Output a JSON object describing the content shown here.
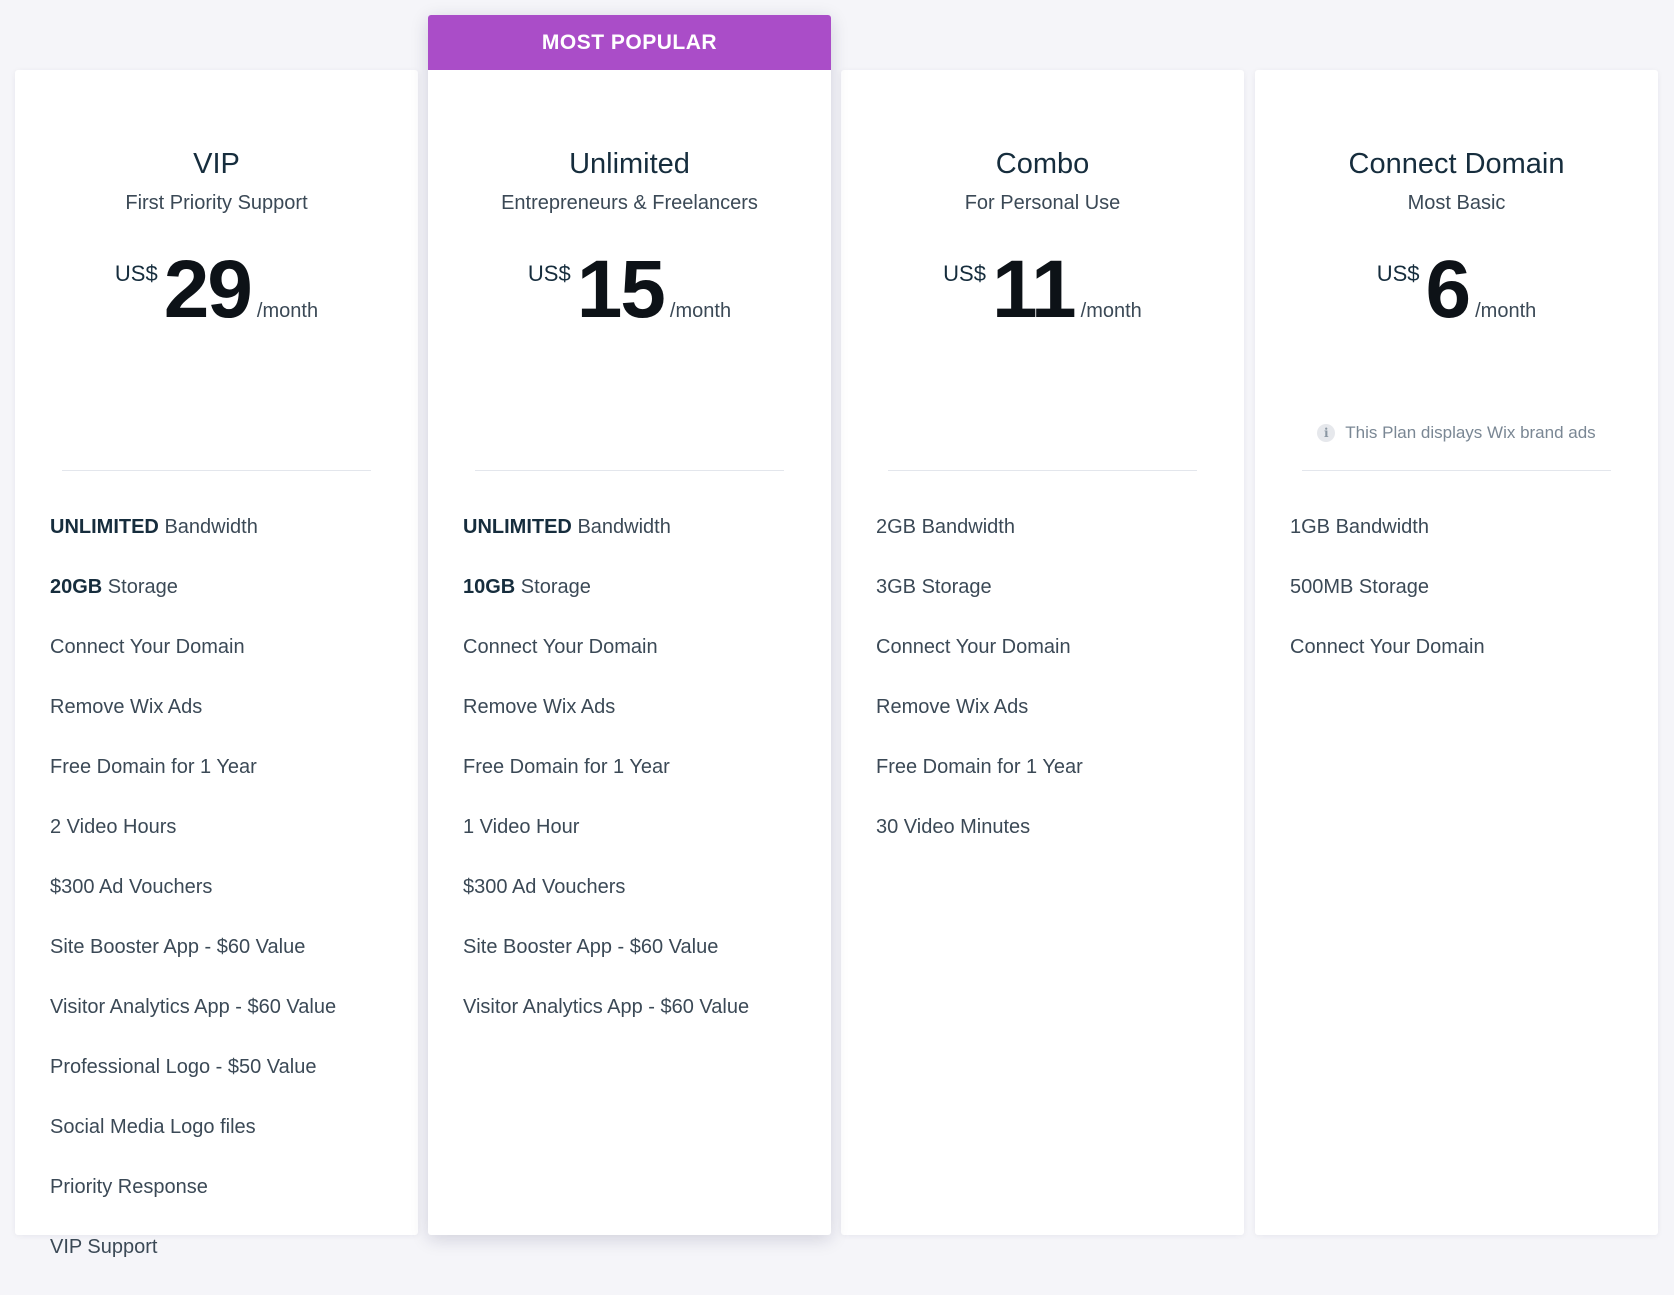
{
  "popular_label": "MOST POPULAR",
  "plans": [
    {
      "name": "VIP",
      "tagline": "First Priority Support",
      "currency": "US$",
      "amount": "29",
      "period": "/month",
      "features": [
        {
          "bold": "UNLIMITED",
          "text": " Bandwidth"
        },
        {
          "bold": "20GB",
          "text": " Storage"
        },
        {
          "bold": "",
          "text": "Connect Your Domain"
        },
        {
          "bold": "",
          "text": "Remove Wix Ads"
        },
        {
          "bold": "",
          "text": "Free Domain for 1 Year"
        },
        {
          "bold": "",
          "text": "2 Video Hours"
        },
        {
          "bold": "",
          "text": "$300 Ad Vouchers"
        },
        {
          "bold": "",
          "text": "Site Booster App - $60 Value"
        },
        {
          "bold": "",
          "text": "Visitor Analytics App - $60 Value"
        },
        {
          "bold": "",
          "text": "Professional Logo - $50 Value"
        },
        {
          "bold": "",
          "text": "Social Media Logo files"
        },
        {
          "bold": "",
          "text": "Priority Response"
        },
        {
          "bold": "",
          "text": "VIP Support"
        }
      ]
    },
    {
      "name": "Unlimited",
      "tagline": "Entrepreneurs & Freelancers",
      "currency": "US$",
      "amount": "15",
      "period": "/month",
      "features": [
        {
          "bold": "UNLIMITED",
          "text": " Bandwidth"
        },
        {
          "bold": "10GB",
          "text": " Storage"
        },
        {
          "bold": "",
          "text": "Connect Your Domain"
        },
        {
          "bold": "",
          "text": "Remove Wix Ads"
        },
        {
          "bold": "",
          "text": "Free Domain for 1 Year"
        },
        {
          "bold": "",
          "text": "1 Video Hour"
        },
        {
          "bold": "",
          "text": "$300 Ad Vouchers"
        },
        {
          "bold": "",
          "text": "Site Booster App - $60 Value"
        },
        {
          "bold": "",
          "text": "Visitor Analytics App - $60 Value"
        }
      ]
    },
    {
      "name": "Combo",
      "tagline": "For Personal Use",
      "currency": "US$",
      "amount": "11",
      "period": "/month",
      "features": [
        {
          "bold": "",
          "text": "2GB Bandwidth"
        },
        {
          "bold": "",
          "text": "3GB Storage"
        },
        {
          "bold": "",
          "text": "Connect Your Domain"
        },
        {
          "bold": "",
          "text": "Remove Wix Ads"
        },
        {
          "bold": "",
          "text": "Free Domain for 1 Year"
        },
        {
          "bold": "",
          "text": "30 Video Minutes"
        }
      ]
    },
    {
      "name": "Connect Domain",
      "tagline": "Most Basic",
      "currency": "US$",
      "amount": "6",
      "period": "/month",
      "note": "This Plan displays Wix brand ads",
      "features": [
        {
          "bold": "",
          "text": "1GB Bandwidth"
        },
        {
          "bold": "",
          "text": "500MB Storage"
        },
        {
          "bold": "",
          "text": "Connect Your Domain"
        }
      ]
    }
  ]
}
